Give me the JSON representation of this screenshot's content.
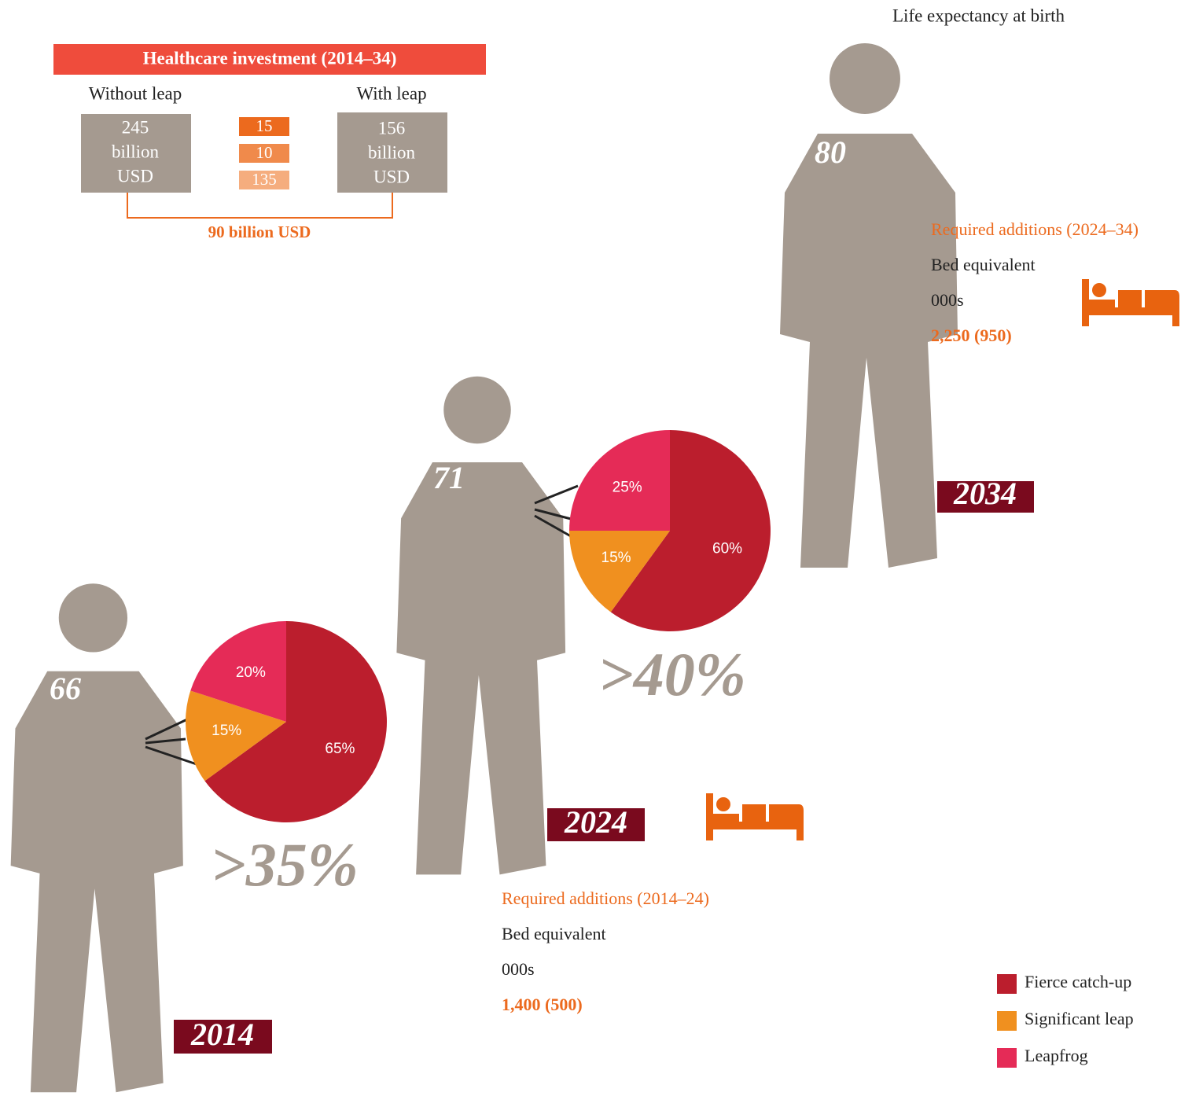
{
  "header": "Life expectancy at birth",
  "investment": {
    "title": "Healthcare investment (2014–34)",
    "without_label": "Without leap",
    "with_label": "With leap",
    "without": [
      "245",
      "billion",
      "USD"
    ],
    "with": [
      "156",
      "billion",
      "USD"
    ],
    "breakdown": [
      "15",
      "10",
      "135"
    ],
    "difference": "90 billion USD"
  },
  "figures": [
    {
      "life_expectancy": "66",
      "year": "2014",
      "share": ">35%"
    },
    {
      "life_expectancy": "71",
      "year": "2024",
      "share": ">40%"
    },
    {
      "life_expectancy": "80",
      "year": "2034"
    }
  ],
  "additions": [
    {
      "title": "Required additions (2014–24)",
      "measure": "Bed equivalent",
      "unit": "000s",
      "value": "1,400 (500)"
    },
    {
      "title": "Required additions (2024–34)",
      "measure": "Bed equivalent",
      "unit": "000s",
      "value": "2,250 (950)"
    }
  ],
  "chart_data": [
    {
      "type": "pie",
      "values": [
        65,
        15,
        20
      ],
      "value_labels": [
        "65%",
        "15%",
        "20%"
      ],
      "colors": [
        "#bb1e2d",
        "#f0901f",
        "#e52b57"
      ]
    },
    {
      "type": "pie",
      "values": [
        60,
        15,
        25
      ],
      "value_labels": [
        "60%",
        "15%",
        "25%"
      ],
      "colors": [
        "#bb1e2d",
        "#f0901f",
        "#e52b57"
      ]
    }
  ],
  "legend": [
    "Fierce catch-up",
    "Significant leap",
    "Leapfrog"
  ]
}
